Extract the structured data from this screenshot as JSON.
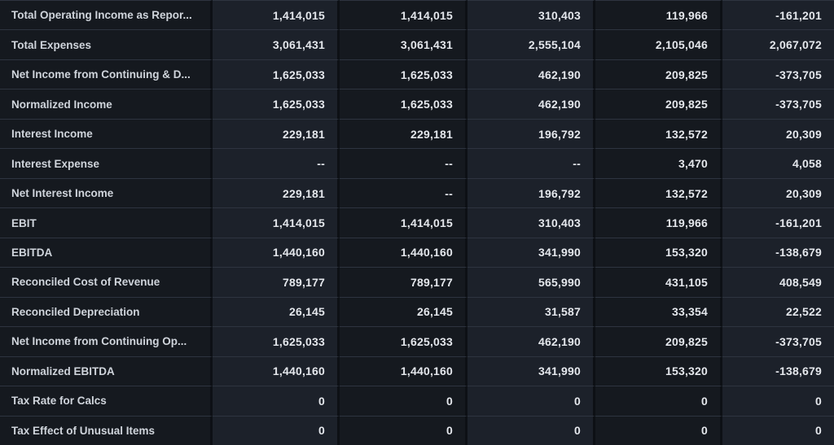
{
  "colors": {
    "cell_dark": "#15191f",
    "cell_light": "#1c212a",
    "separator_line": "#2e3440",
    "column_gap": "#0d1015",
    "label_text": "#cfd4db",
    "value_text": "#e4e7ec"
  },
  "table": {
    "columns": 5,
    "missing_value_symbol": "--",
    "rows": [
      {
        "label": "Total Operating Income as Repor...",
        "values": [
          "1,414,015",
          "1,414,015",
          "310,403",
          "119,966",
          "-161,201"
        ]
      },
      {
        "label": "Total Expenses",
        "values": [
          "3,061,431",
          "3,061,431",
          "2,555,104",
          "2,105,046",
          "2,067,072"
        ]
      },
      {
        "label": "Net Income from Continuing & D...",
        "values": [
          "1,625,033",
          "1,625,033",
          "462,190",
          "209,825",
          "-373,705"
        ]
      },
      {
        "label": "Normalized Income",
        "values": [
          "1,625,033",
          "1,625,033",
          "462,190",
          "209,825",
          "-373,705"
        ]
      },
      {
        "label": "Interest Income",
        "values": [
          "229,181",
          "229,181",
          "196,792",
          "132,572",
          "20,309"
        ]
      },
      {
        "label": "Interest Expense",
        "values": [
          "--",
          "--",
          "--",
          "3,470",
          "4,058"
        ]
      },
      {
        "label": "Net Interest Income",
        "values": [
          "229,181",
          "--",
          "196,792",
          "132,572",
          "20,309"
        ]
      },
      {
        "label": "EBIT",
        "values": [
          "1,414,015",
          "1,414,015",
          "310,403",
          "119,966",
          "-161,201"
        ]
      },
      {
        "label": "EBITDA",
        "values": [
          "1,440,160",
          "1,440,160",
          "341,990",
          "153,320",
          "-138,679"
        ]
      },
      {
        "label": "Reconciled Cost of Revenue",
        "values": [
          "789,177",
          "789,177",
          "565,990",
          "431,105",
          "408,549"
        ]
      },
      {
        "label": "Reconciled Depreciation",
        "values": [
          "26,145",
          "26,145",
          "31,587",
          "33,354",
          "22,522"
        ]
      },
      {
        "label": "Net Income from Continuing Op...",
        "values": [
          "1,625,033",
          "1,625,033",
          "462,190",
          "209,825",
          "-373,705"
        ]
      },
      {
        "label": "Normalized EBITDA",
        "values": [
          "1,440,160",
          "1,440,160",
          "341,990",
          "153,320",
          "-138,679"
        ]
      },
      {
        "label": "Tax Rate for Calcs",
        "values": [
          "0",
          "0",
          "0",
          "0",
          "0"
        ]
      },
      {
        "label": "Tax Effect of Unusual Items",
        "values": [
          "0",
          "0",
          "0",
          "0",
          "0"
        ]
      }
    ]
  }
}
